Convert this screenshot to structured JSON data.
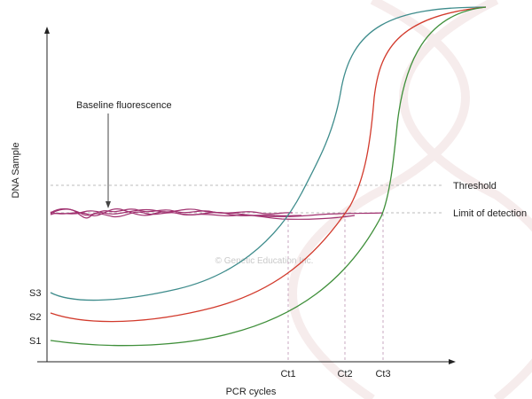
{
  "chart_data": {
    "type": "line",
    "xlabel": "PCR cycles",
    "ylabel": "DNA Sample",
    "grid": false,
    "watermark": "© Genetic Education Inc.",
    "annotations": {
      "baseline": "Baseline fluorescence",
      "threshold": "Threshold",
      "limit": "Limit of detection"
    },
    "x_ticks": [
      "Ct1",
      "Ct2",
      "Ct3"
    ],
    "y_ticks": [
      "S3",
      "S2",
      "S1"
    ],
    "series": [
      {
        "name": "S3",
        "color": "#3e8c8c"
      },
      {
        "name": "S2",
        "color": "#d23a2c"
      },
      {
        "name": "S1",
        "color": "#3f8f3a"
      }
    ],
    "baseline_color": "#a0306f",
    "guide_color": "#bbbbbb"
  }
}
